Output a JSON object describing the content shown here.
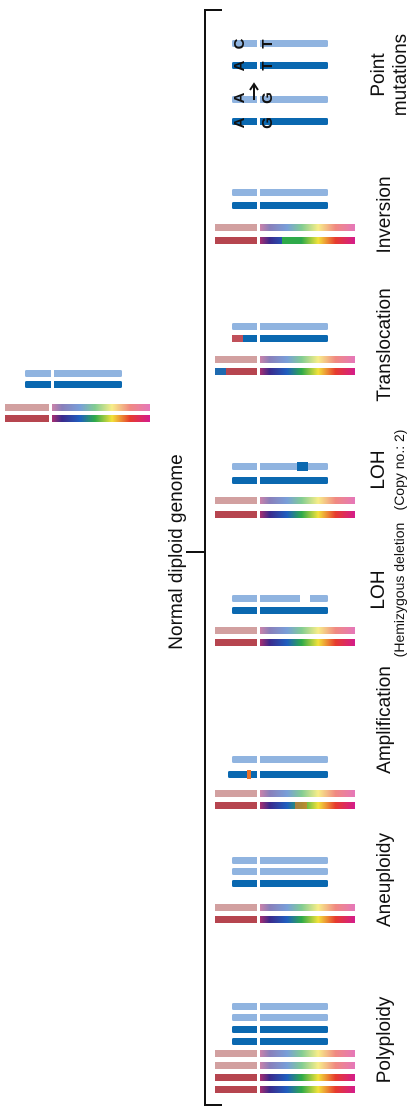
{
  "normal": {
    "label": "Normal diploid genome"
  },
  "panels": [
    {
      "label": "Polyploidy"
    },
    {
      "label": "Aneuploidy"
    },
    {
      "label": "Amplification"
    },
    {
      "label": "LOH",
      "sublabel": "(Hemizygous deletion"
    },
    {
      "label": "LOH",
      "sublabel": "(Copy no.: 2)"
    },
    {
      "label": "Translocation"
    },
    {
      "label": "Inversion"
    },
    {
      "label": "Point",
      "sublabel": "mutations"
    }
  ],
  "bases": [
    "A",
    "A",
    "G",
    "G",
    "A",
    "C",
    "T",
    "T"
  ]
}
